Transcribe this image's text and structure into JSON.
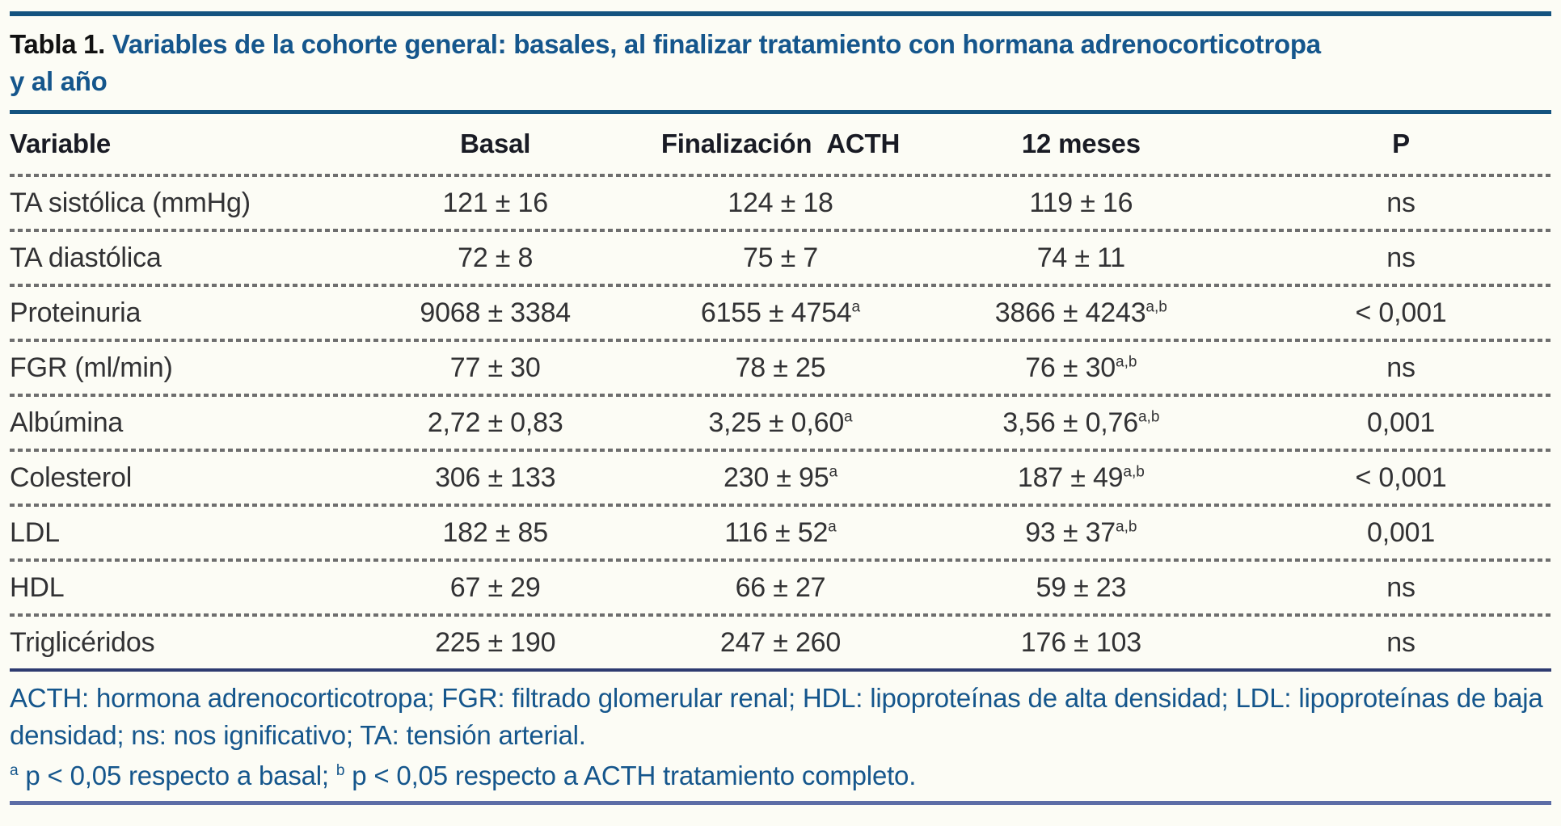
{
  "table": {
    "label": "Tabla 1.",
    "title_line1": "Variables de la cohorte general: basales, al finalizar tratamiento con hormana adrenocorticotropa",
    "title_line2": "y al año",
    "columns": [
      "Variable",
      "Basal",
      "Finalización  ACTH",
      "12 meses",
      "P"
    ],
    "rows": [
      {
        "variable": "TA sistólica (mmHg)",
        "basal": "121 ± 16",
        "acth": "124 ± 18",
        "acth_sup": "",
        "m12": "119 ± 16",
        "m12_sup": "",
        "p": "ns"
      },
      {
        "variable": "TA diastólica",
        "basal": "72 ± 8",
        "acth": "75 ± 7",
        "acth_sup": "",
        "m12": "74 ± 11",
        "m12_sup": "",
        "p": "ns"
      },
      {
        "variable": "Proteinuria",
        "basal": "9068 ± 3384",
        "acth": "6155 ± 4754",
        "acth_sup": "a",
        "m12": "3866 ± 4243",
        "m12_sup": "a,b",
        "p": "< 0,001"
      },
      {
        "variable": "FGR (ml/min)",
        "basal": "77 ± 30",
        "acth": "78 ± 25",
        "acth_sup": "",
        "m12": "76 ± 30",
        "m12_sup": "a,b",
        "p": "ns"
      },
      {
        "variable": "Albúmina",
        "basal": "2,72 ± 0,83",
        "acth": "3,25 ± 0,60",
        "acth_sup": "a",
        "m12": "3,56 ± 0,76",
        "m12_sup": "a,b",
        "p": "0,001"
      },
      {
        "variable": "Colesterol",
        "basal": "306 ± 133",
        "acth": "230 ± 95",
        "acth_sup": "a",
        "m12": "187 ± 49",
        "m12_sup": "a,b",
        "p": "< 0,001"
      },
      {
        "variable": "LDL",
        "basal": "182 ± 85",
        "acth": "116 ± 52",
        "acth_sup": "a",
        "m12": "93 ± 37",
        "m12_sup": "a,b",
        "p": "0,001"
      },
      {
        "variable": "HDL",
        "basal": "67 ± 29",
        "acth": "66 ± 27",
        "acth_sup": "",
        "m12": "59 ± 23",
        "m12_sup": "",
        "p": "ns"
      },
      {
        "variable": "Triglicéridos",
        "basal": "225 ± 190",
        "acth": "247 ± 260",
        "acth_sup": "",
        "m12": "176 ± 103",
        "m12_sup": "",
        "p": "ns"
      }
    ],
    "footnote_abbrev": "ACTH: hormona adrenocorticotropa; FGR: filtrado glomerular renal; HDL: lipoproteínas de alta densidad; LDL: lipoproteínas de baja densidad; ns: nos ignificativo; TA: tensión arterial.",
    "sig": {
      "a_sup": "a",
      "a_text": " p < 0,05 respecto a basal; ",
      "b_sup": "b",
      "b_text": " p < 0,05 respecto a ACTH tratamiento completo."
    },
    "colors": {
      "title_blue": "#15568c",
      "rule_blue": "#14537f",
      "rule_navy": "#2e3b70",
      "rule_slate": "#5c6da6",
      "dash_gray": "#6e6e6e"
    }
  }
}
